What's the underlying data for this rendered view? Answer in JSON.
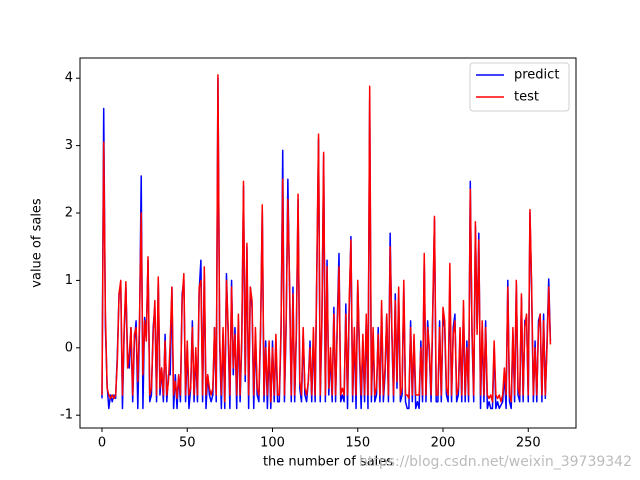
{
  "chart_data": {
    "type": "line",
    "xlabel": "the number of sales",
    "ylabel": "value of sales",
    "watermark": "https://blog.csdn.net/weixin_39739342",
    "legend": "upper right",
    "xlim": [
      -12.9,
      278
    ],
    "ylim": [
      -1.19,
      4.3
    ],
    "xticks": [
      0,
      50,
      100,
      150,
      200,
      250
    ],
    "yticks": [
      -1,
      0,
      1,
      2,
      3,
      4
    ],
    "x": [
      0,
      1,
      2,
      3,
      4,
      5,
      6,
      7,
      8,
      9,
      10,
      11,
      12,
      13,
      14,
      15,
      16,
      17,
      18,
      19,
      20,
      21,
      22,
      23,
      24,
      25,
      26,
      27,
      28,
      29,
      30,
      31,
      32,
      33,
      34,
      35,
      36,
      37,
      38,
      39,
      40,
      41,
      42,
      43,
      44,
      45,
      46,
      47,
      48,
      49,
      50,
      51,
      52,
      53,
      54,
      55,
      56,
      57,
      58,
      59,
      60,
      61,
      62,
      63,
      64,
      65,
      66,
      67,
      68,
      69,
      70,
      71,
      72,
      73,
      74,
      75,
      76,
      77,
      78,
      79,
      80,
      81,
      82,
      83,
      84,
      85,
      86,
      87,
      88,
      89,
      90,
      91,
      92,
      93,
      94,
      95,
      96,
      97,
      98,
      99,
      100,
      101,
      102,
      103,
      104,
      105,
      106,
      107,
      108,
      109,
      110,
      111,
      112,
      113,
      114,
      115,
      116,
      117,
      118,
      119,
      120,
      121,
      122,
      123,
      124,
      125,
      126,
      127,
      128,
      129,
      130,
      131,
      132,
      133,
      134,
      135,
      136,
      137,
      138,
      139,
      140,
      141,
      142,
      143,
      144,
      145,
      146,
      147,
      148,
      149,
      150,
      151,
      152,
      153,
      154,
      155,
      156,
      157,
      158,
      159,
      160,
      161,
      162,
      163,
      164,
      165,
      166,
      167,
      168,
      169,
      170,
      171,
      172,
      173,
      174,
      175,
      176,
      177,
      178,
      179,
      180,
      181,
      182,
      183,
      184,
      185,
      186,
      187,
      188,
      189,
      190,
      191,
      192,
      193,
      194,
      195,
      196,
      197,
      198,
      199,
      200,
      201,
      202,
      203,
      204,
      205,
      206,
      207,
      208,
      209,
      210,
      211,
      212,
      213,
      214,
      215,
      216,
      217,
      218,
      219,
      220,
      221,
      222,
      223,
      224,
      225,
      226,
      227,
      228,
      229,
      230,
      231,
      232,
      233,
      234,
      235,
      236,
      237,
      238,
      239,
      240,
      241,
      242,
      243,
      244,
      245,
      246,
      247,
      248,
      249,
      250,
      251,
      252,
      253,
      254,
      255,
      256,
      257,
      258,
      259,
      260,
      261,
      262,
      263
    ],
    "series": [
      {
        "name": "predict",
        "color": "#0000ff",
        "values": [
          -0.75,
          3.55,
          0.3,
          -0.55,
          -0.9,
          -0.7,
          -0.8,
          -0.7,
          -0.75,
          -0.1,
          0.8,
          0.95,
          -0.9,
          0.2,
          0.9,
          -0.1,
          -0.3,
          0.3,
          -0.8,
          0.1,
          0.4,
          -0.9,
          0.3,
          2.55,
          -0.9,
          0.45,
          0.2,
          1.3,
          -0.8,
          -0.7,
          0.3,
          0.6,
          -0.8,
          1.0,
          -0.7,
          -0.3,
          -0.8,
          0.2,
          -0.8,
          -0.4,
          -0.4,
          0.9,
          -0.9,
          -0.4,
          -0.9,
          -0.4,
          -0.8,
          0.8,
          1.0,
          -0.8,
          0.0,
          -0.9,
          -0.6,
          0.4,
          -0.8,
          -0.1,
          -0.8,
          0.85,
          1.3,
          -0.8,
          1.1,
          -0.9,
          -0.4,
          -0.7,
          -0.8,
          -0.7,
          0.3,
          -0.8,
          4.0,
          0.1,
          -0.9,
          0.2,
          -0.9,
          1.1,
          0.2,
          -0.9,
          1.0,
          -0.4,
          0.3,
          -0.9,
          0.4,
          -0.8,
          0.1,
          2.4,
          -0.5,
          1.5,
          -0.9,
          0.9,
          0.6,
          -0.9,
          0.2,
          -0.7,
          -0.8,
          0.2,
          2.05,
          -0.8,
          0.1,
          -0.9,
          0.0,
          -0.9,
          0.1,
          -0.8,
          0.1,
          -0.8,
          -0.8,
          0.2,
          2.93,
          -0.8,
          0.3,
          2.5,
          0.9,
          -0.8,
          0.9,
          -0.8,
          0.2,
          2.2,
          -0.6,
          -0.8,
          0.2,
          -0.7,
          -0.8,
          -0.5,
          0.1,
          -0.8,
          0.2,
          -0.8,
          1.1,
          3.1,
          -0.8,
          0.4,
          2.85,
          -0.8,
          1.3,
          -0.7,
          -0.1,
          -0.8,
          0.6,
          -0.8,
          0.4,
          1.4,
          -0.8,
          -0.7,
          -0.8,
          0.65,
          -0.9,
          0.6,
          1.65,
          -0.8,
          0.2,
          -0.9,
          0.95,
          -0.1,
          -0.9,
          0.1,
          -0.8,
          0.4,
          -0.9,
          3.7,
          -0.8,
          0.2,
          -0.8,
          -0.7,
          0.3,
          -0.8,
          0.6,
          -0.8,
          -0.4,
          0.5,
          -0.8,
          1.7,
          0.2,
          -0.8,
          0.8,
          -0.6,
          0.8,
          -0.8,
          -0.7,
          0.9,
          -0.8,
          -0.9,
          -0.9,
          0.4,
          -0.8,
          0.1,
          -0.9,
          -0.8,
          -0.9,
          0.1,
          -0.8,
          1.3,
          -0.8,
          0.4,
          -0.1,
          -0.8,
          0.5,
          1.9,
          -0.8,
          -0.8,
          0.4,
          -0.8,
          0.5,
          0.3,
          -0.7,
          -0.8,
          0.97,
          -0.8,
          0.3,
          0.5,
          -0.8,
          -0.7,
          0.2,
          -0.8,
          0.6,
          -0.8,
          0.1,
          -0.8,
          2.47,
          0.2,
          -0.8,
          1.8,
          0.3,
          1.7,
          -0.9,
          0.3,
          -0.8,
          0.4,
          -0.9,
          -0.8,
          -0.9,
          -0.9,
          0.0,
          -0.9,
          -0.8,
          -0.9,
          -0.85,
          -0.8,
          -0.4,
          -0.9,
          1.0,
          -0.8,
          -0.9,
          0.2,
          -0.8,
          0.95,
          -0.7,
          -0.8,
          0.75,
          -0.8,
          0.4,
          0.45,
          -0.8,
          2.0,
          0.8,
          -0.8,
          0.1,
          -0.8,
          0.4,
          0.5,
          -0.8,
          0.5,
          -0.75,
          0.1,
          1.02,
          0.1
        ]
      },
      {
        "name": "test",
        "color": "#ff0000",
        "values": [
          -0.7,
          3.05,
          0.5,
          -0.6,
          -0.7,
          -0.75,
          -0.7,
          -0.75,
          -0.7,
          -0.2,
          0.8,
          1.0,
          -0.7,
          0.3,
          0.98,
          -0.3,
          -0.1,
          0.3,
          -0.7,
          0.2,
          0.3,
          -0.5,
          0.4,
          2.0,
          -0.4,
          0.4,
          0.1,
          1.35,
          -0.7,
          -0.6,
          0.2,
          0.7,
          -0.7,
          1.05,
          -0.6,
          -0.3,
          -0.7,
          0.1,
          -0.7,
          -0.5,
          0.1,
          0.9,
          -0.7,
          -0.5,
          -0.75,
          -0.4,
          -0.7,
          0.7,
          1.1,
          -0.7,
          0.1,
          -0.7,
          -0.6,
          0.3,
          -0.7,
          0.0,
          -0.7,
          0.9,
          1.0,
          -0.7,
          1.2,
          -0.7,
          -0.4,
          -0.6,
          -0.7,
          -0.6,
          0.3,
          -0.7,
          4.05,
          0.2,
          -0.7,
          0.3,
          -0.8,
          1.0,
          0.3,
          -0.7,
          0.9,
          -0.3,
          0.2,
          -0.7,
          0.5,
          -0.7,
          0.2,
          2.47,
          -0.4,
          1.55,
          -0.7,
          0.9,
          0.7,
          -0.7,
          0.3,
          -0.6,
          -0.7,
          0.3,
          2.12,
          -0.7,
          0.0,
          -0.7,
          0.1,
          -0.8,
          0.0,
          -0.7,
          0.2,
          -0.7,
          -0.7,
          0.3,
          2.5,
          -0.7,
          0.4,
          2.2,
          1.0,
          -0.7,
          0.8,
          -0.7,
          0.3,
          2.28,
          -0.5,
          -0.7,
          0.3,
          -0.6,
          -0.7,
          -0.5,
          0.0,
          -0.7,
          0.3,
          -0.7,
          1.2,
          3.17,
          -0.7,
          0.5,
          2.9,
          -0.7,
          1.2,
          -0.6,
          0.0,
          -0.7,
          0.5,
          -0.7,
          0.3,
          1.2,
          -0.7,
          -0.6,
          -0.7,
          0.5,
          -0.7,
          0.7,
          1.6,
          -0.7,
          0.3,
          -0.7,
          1.0,
          0.0,
          -0.7,
          0.2,
          -0.7,
          0.5,
          -0.7,
          3.88,
          -0.7,
          0.3,
          -0.7,
          -0.6,
          0.2,
          -0.7,
          0.7,
          -0.7,
          -0.3,
          0.5,
          -0.7,
          1.5,
          0.3,
          -0.7,
          0.7,
          -0.5,
          0.9,
          -0.7,
          -0.6,
          1.0,
          -0.7,
          -0.7,
          -0.75,
          0.3,
          -0.7,
          0.2,
          -0.7,
          -0.7,
          -0.7,
          0.0,
          -0.7,
          1.4,
          -0.7,
          0.3,
          0.0,
          -0.7,
          0.6,
          1.95,
          -0.7,
          -0.7,
          0.3,
          -0.7,
          0.6,
          0.4,
          -0.6,
          -0.7,
          1.25,
          -0.7,
          0.2,
          0.4,
          -0.7,
          -0.6,
          0.3,
          -0.7,
          0.7,
          -0.7,
          0.0,
          -0.7,
          2.35,
          0.3,
          -0.7,
          1.87,
          0.2,
          1.6,
          -0.7,
          0.4,
          -0.7,
          0.3,
          -0.7,
          -0.75,
          -0.7,
          -0.8,
          0.1,
          -0.7,
          -0.75,
          -0.7,
          -0.8,
          -0.7,
          -0.3,
          -0.7,
          0.9,
          -0.7,
          -0.8,
          0.3,
          -0.7,
          1.0,
          -0.6,
          -0.7,
          0.8,
          -0.7,
          0.3,
          0.5,
          -0.7,
          2.05,
          0.9,
          -0.7,
          0.0,
          -0.7,
          0.3,
          0.5,
          -0.7,
          0.4,
          -0.7,
          0.0,
          0.9,
          0.05
        ]
      }
    ]
  }
}
